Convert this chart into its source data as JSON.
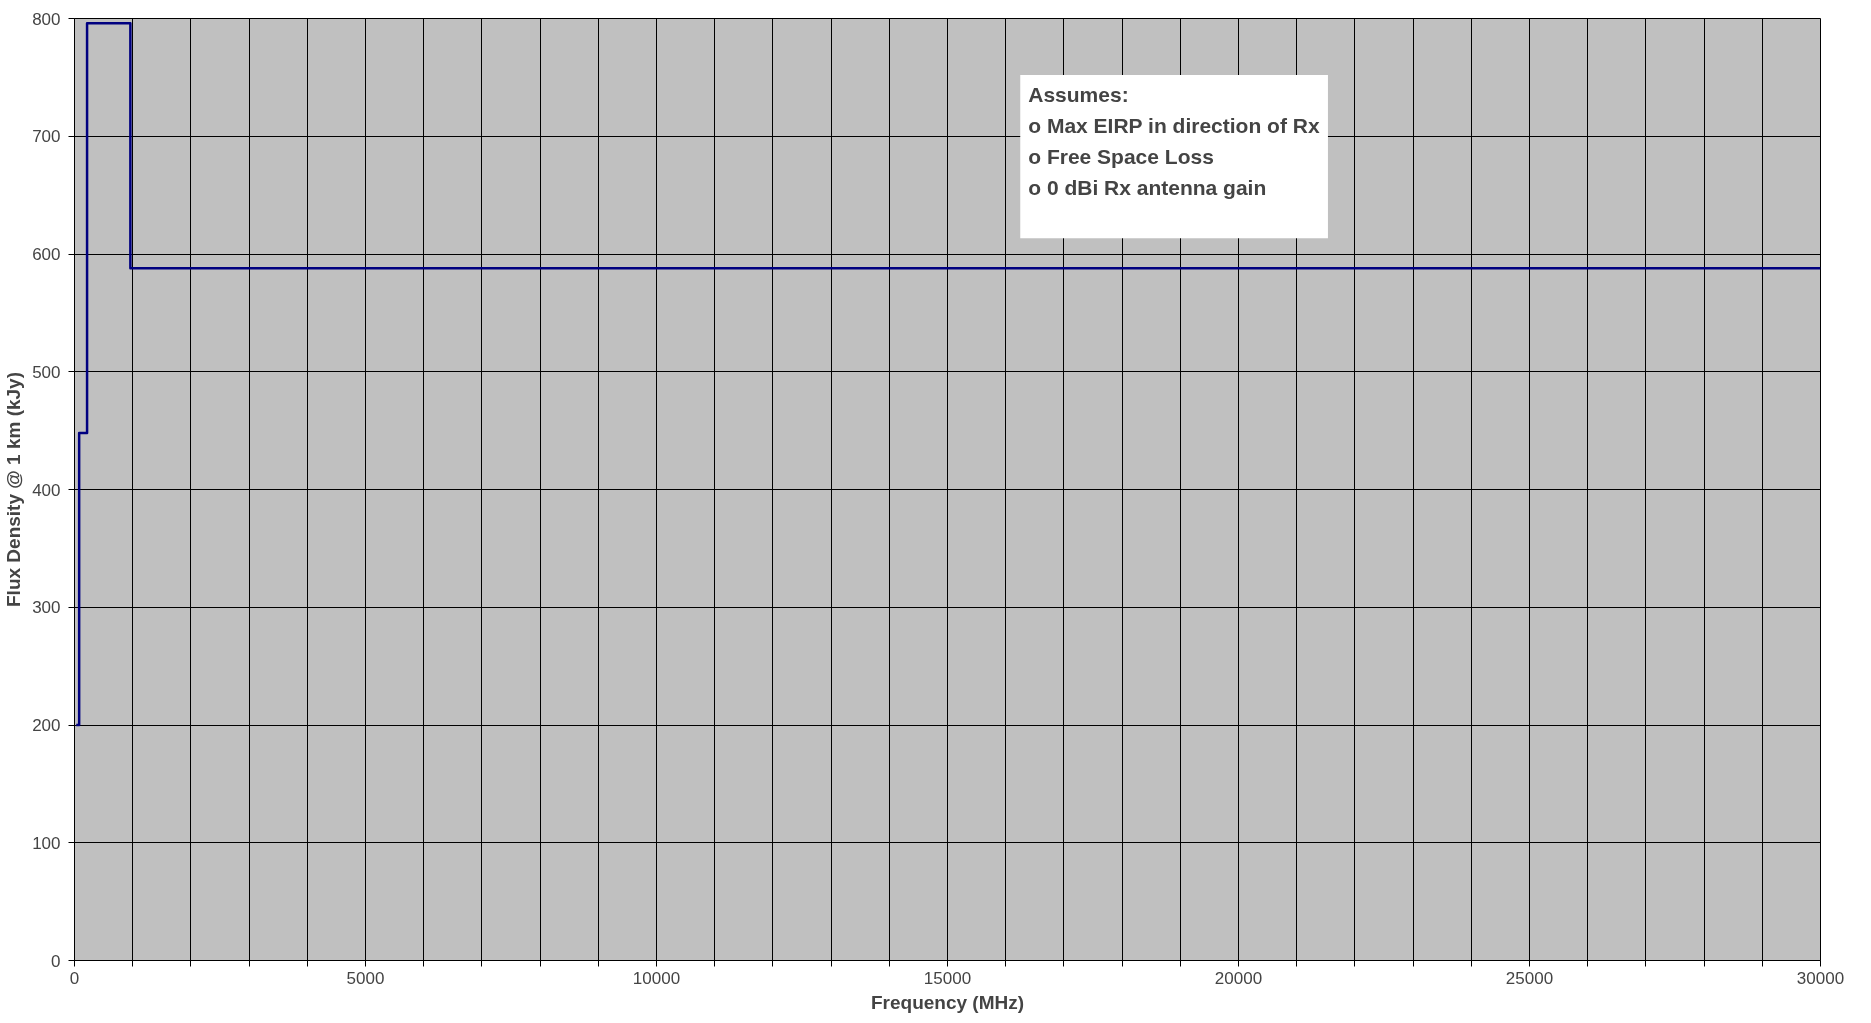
{
  "chart_data": {
    "type": "step",
    "xlabel": "Frequency (MHz)",
    "ylabel": "Flux Density @ 1 km (kJy)",
    "x": [
      30,
      80,
      216,
      960,
      30000
    ],
    "series": [
      {
        "color": "#000080",
        "values": [
          200,
          448,
          796,
          588,
          588
        ]
      }
    ],
    "xlim": [
      0,
      30000
    ],
    "ylim": [
      0,
      800
    ],
    "xticks": [
      0,
      {
        "value": 1000,
        "label": null
      },
      {
        "value": 2000,
        "label": null
      },
      {
        "value": 3000,
        "label": null
      },
      {
        "value": 4000,
        "label": null
      },
      5000,
      {
        "value": 6000,
        "label": null
      },
      {
        "value": 7000,
        "label": null
      },
      {
        "value": 8000,
        "label": null
      },
      {
        "value": 9000,
        "label": null
      },
      10000,
      {
        "value": 11000,
        "label": null
      },
      {
        "value": 12000,
        "label": null
      },
      {
        "value": 13000,
        "label": null
      },
      {
        "value": 14000,
        "label": null
      },
      15000,
      {
        "value": 16000,
        "label": null
      },
      {
        "value": 17000,
        "label": null
      },
      {
        "value": 18000,
        "label": null
      },
      {
        "value": 19000,
        "label": null
      },
      20000,
      {
        "value": 21000,
        "label": null
      },
      {
        "value": 22000,
        "label": null
      },
      {
        "value": 23000,
        "label": null
      },
      {
        "value": 24000,
        "label": null
      },
      25000,
      {
        "value": 26000,
        "label": null
      },
      {
        "value": 27000,
        "label": null
      },
      {
        "value": 28000,
        "label": null
      },
      {
        "value": 29000,
        "label": null
      },
      30000
    ],
    "yticks": [
      0,
      100,
      200,
      300,
      400,
      500,
      600,
      700,
      800
    ],
    "grid": true,
    "line_style": "solid",
    "annotations": [
      "Assumes:",
      "o Max EIRP in direction of Rx",
      "o Free Space Loss",
      "o 0 dBi Rx antenna gain"
    ]
  }
}
